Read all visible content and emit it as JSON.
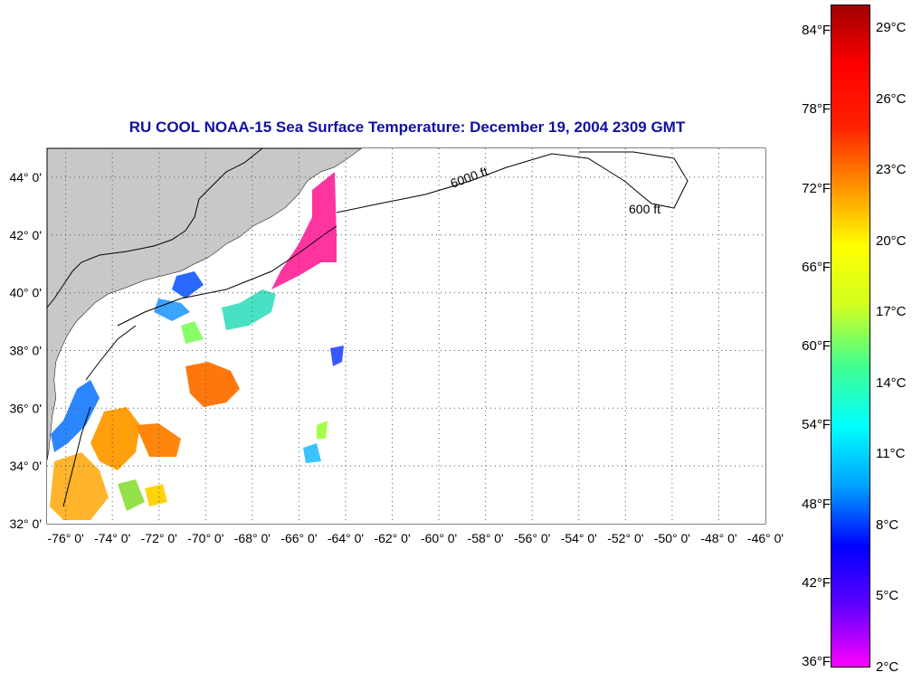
{
  "title": "RU COOL  NOAA-15  Sea Surface Temperature:  December 19, 2004 2309 GMT",
  "map": {
    "lon_labels": [
      "-76° 0'",
      "-74° 0'",
      "-72° 0'",
      "-70° 0'",
      "-68° 0'",
      "-66° 0'",
      "-64° 0'",
      "-62° 0'",
      "-60° 0'",
      "-58° 0'",
      "-56° 0'",
      "-54° 0'",
      "-52° 0'",
      "-50° 0'",
      "-48° 0'",
      "-46° 0'"
    ],
    "lat_labels": [
      "44° 0'",
      "42° 0'",
      "40° 0'",
      "38° 0'",
      "36° 0'",
      "34° 0'",
      "32° 0'"
    ],
    "lon_range": [
      -76.8,
      -46.0
    ],
    "lat_range": [
      32.0,
      45.0
    ],
    "isobath_labels": [
      "600 ft",
      "6000 ft"
    ],
    "land_color": "#c8c8c8",
    "grid": "dotted"
  },
  "colorbar": {
    "fahrenheit": [
      "84°F",
      "78°F",
      "72°F",
      "66°F",
      "60°F",
      "54°F",
      "48°F",
      "42°F",
      "36°F"
    ],
    "celsius": [
      "29°C",
      "26°C",
      "23°C",
      "20°C",
      "17°C",
      "14°C",
      "11°C",
      "8°C",
      "5°C",
      "2°C"
    ],
    "range_c": [
      2,
      30
    ],
    "colors": [
      "#ff00ff",
      "#6000ff",
      "#0000ff",
      "#00a0ff",
      "#00ffff",
      "#40ff90",
      "#d0ff20",
      "#ffff00",
      "#ff9000",
      "#ff2000",
      "#ff0000",
      "#a00000"
    ]
  }
}
